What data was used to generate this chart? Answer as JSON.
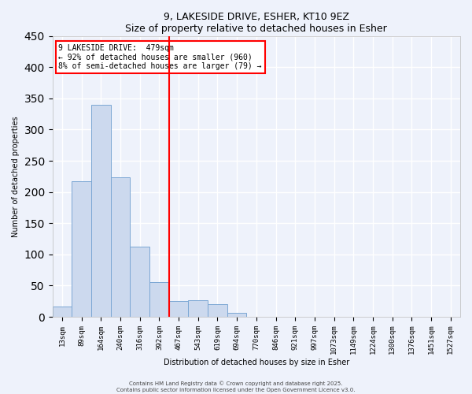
{
  "title": "9, LAKESIDE DRIVE, ESHER, KT10 9EZ",
  "subtitle": "Size of property relative to detached houses in Esher",
  "xlabel": "Distribution of detached houses by size in Esher",
  "ylabel": "Number of detached properties",
  "bar_labels": [
    "13sqm",
    "89sqm",
    "164sqm",
    "240sqm",
    "316sqm",
    "392sqm",
    "467sqm",
    "543sqm",
    "619sqm",
    "694sqm",
    "770sqm",
    "846sqm",
    "921sqm",
    "997sqm",
    "1073sqm",
    "1149sqm",
    "1224sqm",
    "1300sqm",
    "1376sqm",
    "1451sqm",
    "1527sqm"
  ],
  "bar_values": [
    17,
    217,
    340,
    224,
    113,
    56,
    25,
    26,
    20,
    7,
    0,
    0,
    0,
    0,
    0,
    0,
    0,
    0,
    0,
    0,
    0
  ],
  "bar_color": "#ccd9ee",
  "bar_edge_color": "#7ba7d4",
  "vline_index": 6,
  "vline_color": "red",
  "ylim": [
    0,
    450
  ],
  "yticks": [
    0,
    50,
    100,
    150,
    200,
    250,
    300,
    350,
    400,
    450
  ],
  "annotation_text": "9 LAKESIDE DRIVE:  479sqm\n← 92% of detached houses are smaller (960)\n8% of semi-detached houses are larger (79) →",
  "annotation_box_color": "white",
  "annotation_box_edge": "red",
  "footer_line1": "Contains HM Land Registry data © Crown copyright and database right 2025.",
  "footer_line2": "Contains public sector information licensed under the Open Government Licence v3.0.",
  "bg_color": "#eef2fb",
  "grid_color": "white",
  "title_fontsize": 9,
  "subtitle_fontsize": 8,
  "axis_label_fontsize": 7,
  "tick_fontsize": 6.5,
  "annotation_fontsize": 7,
  "footer_fontsize": 5
}
